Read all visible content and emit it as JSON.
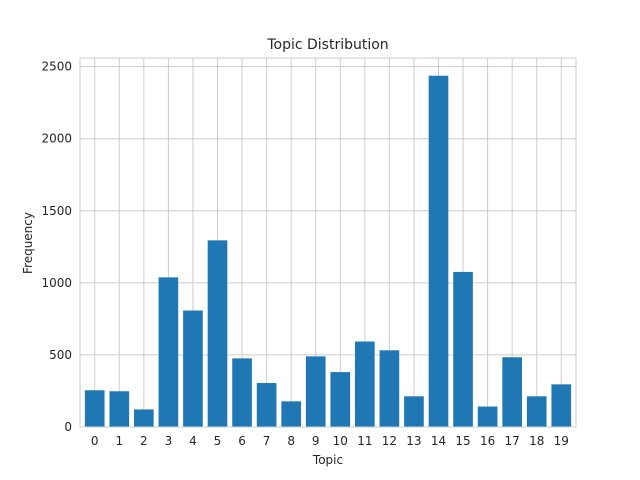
{
  "chart_data": {
    "type": "bar",
    "title": "Topic Distribution",
    "xlabel": "Topic",
    "ylabel": "Frequency",
    "categories": [
      "0",
      "1",
      "2",
      "3",
      "4",
      "5",
      "6",
      "7",
      "8",
      "9",
      "10",
      "11",
      "12",
      "13",
      "14",
      "15",
      "16",
      "17",
      "18",
      "19"
    ],
    "values": [
      255,
      248,
      122,
      1038,
      808,
      1295,
      476,
      305,
      178,
      490,
      381,
      593,
      532,
      213,
      2437,
      1076,
      142,
      484,
      213,
      296
    ],
    "ylim": [
      0,
      2560
    ],
    "yticks": [
      0,
      500,
      1000,
      1500,
      2000,
      2500
    ],
    "grid": true,
    "bar_color": "#1f77b4",
    "grid_color": "#cccccc",
    "spine_color": "#cccccc"
  }
}
